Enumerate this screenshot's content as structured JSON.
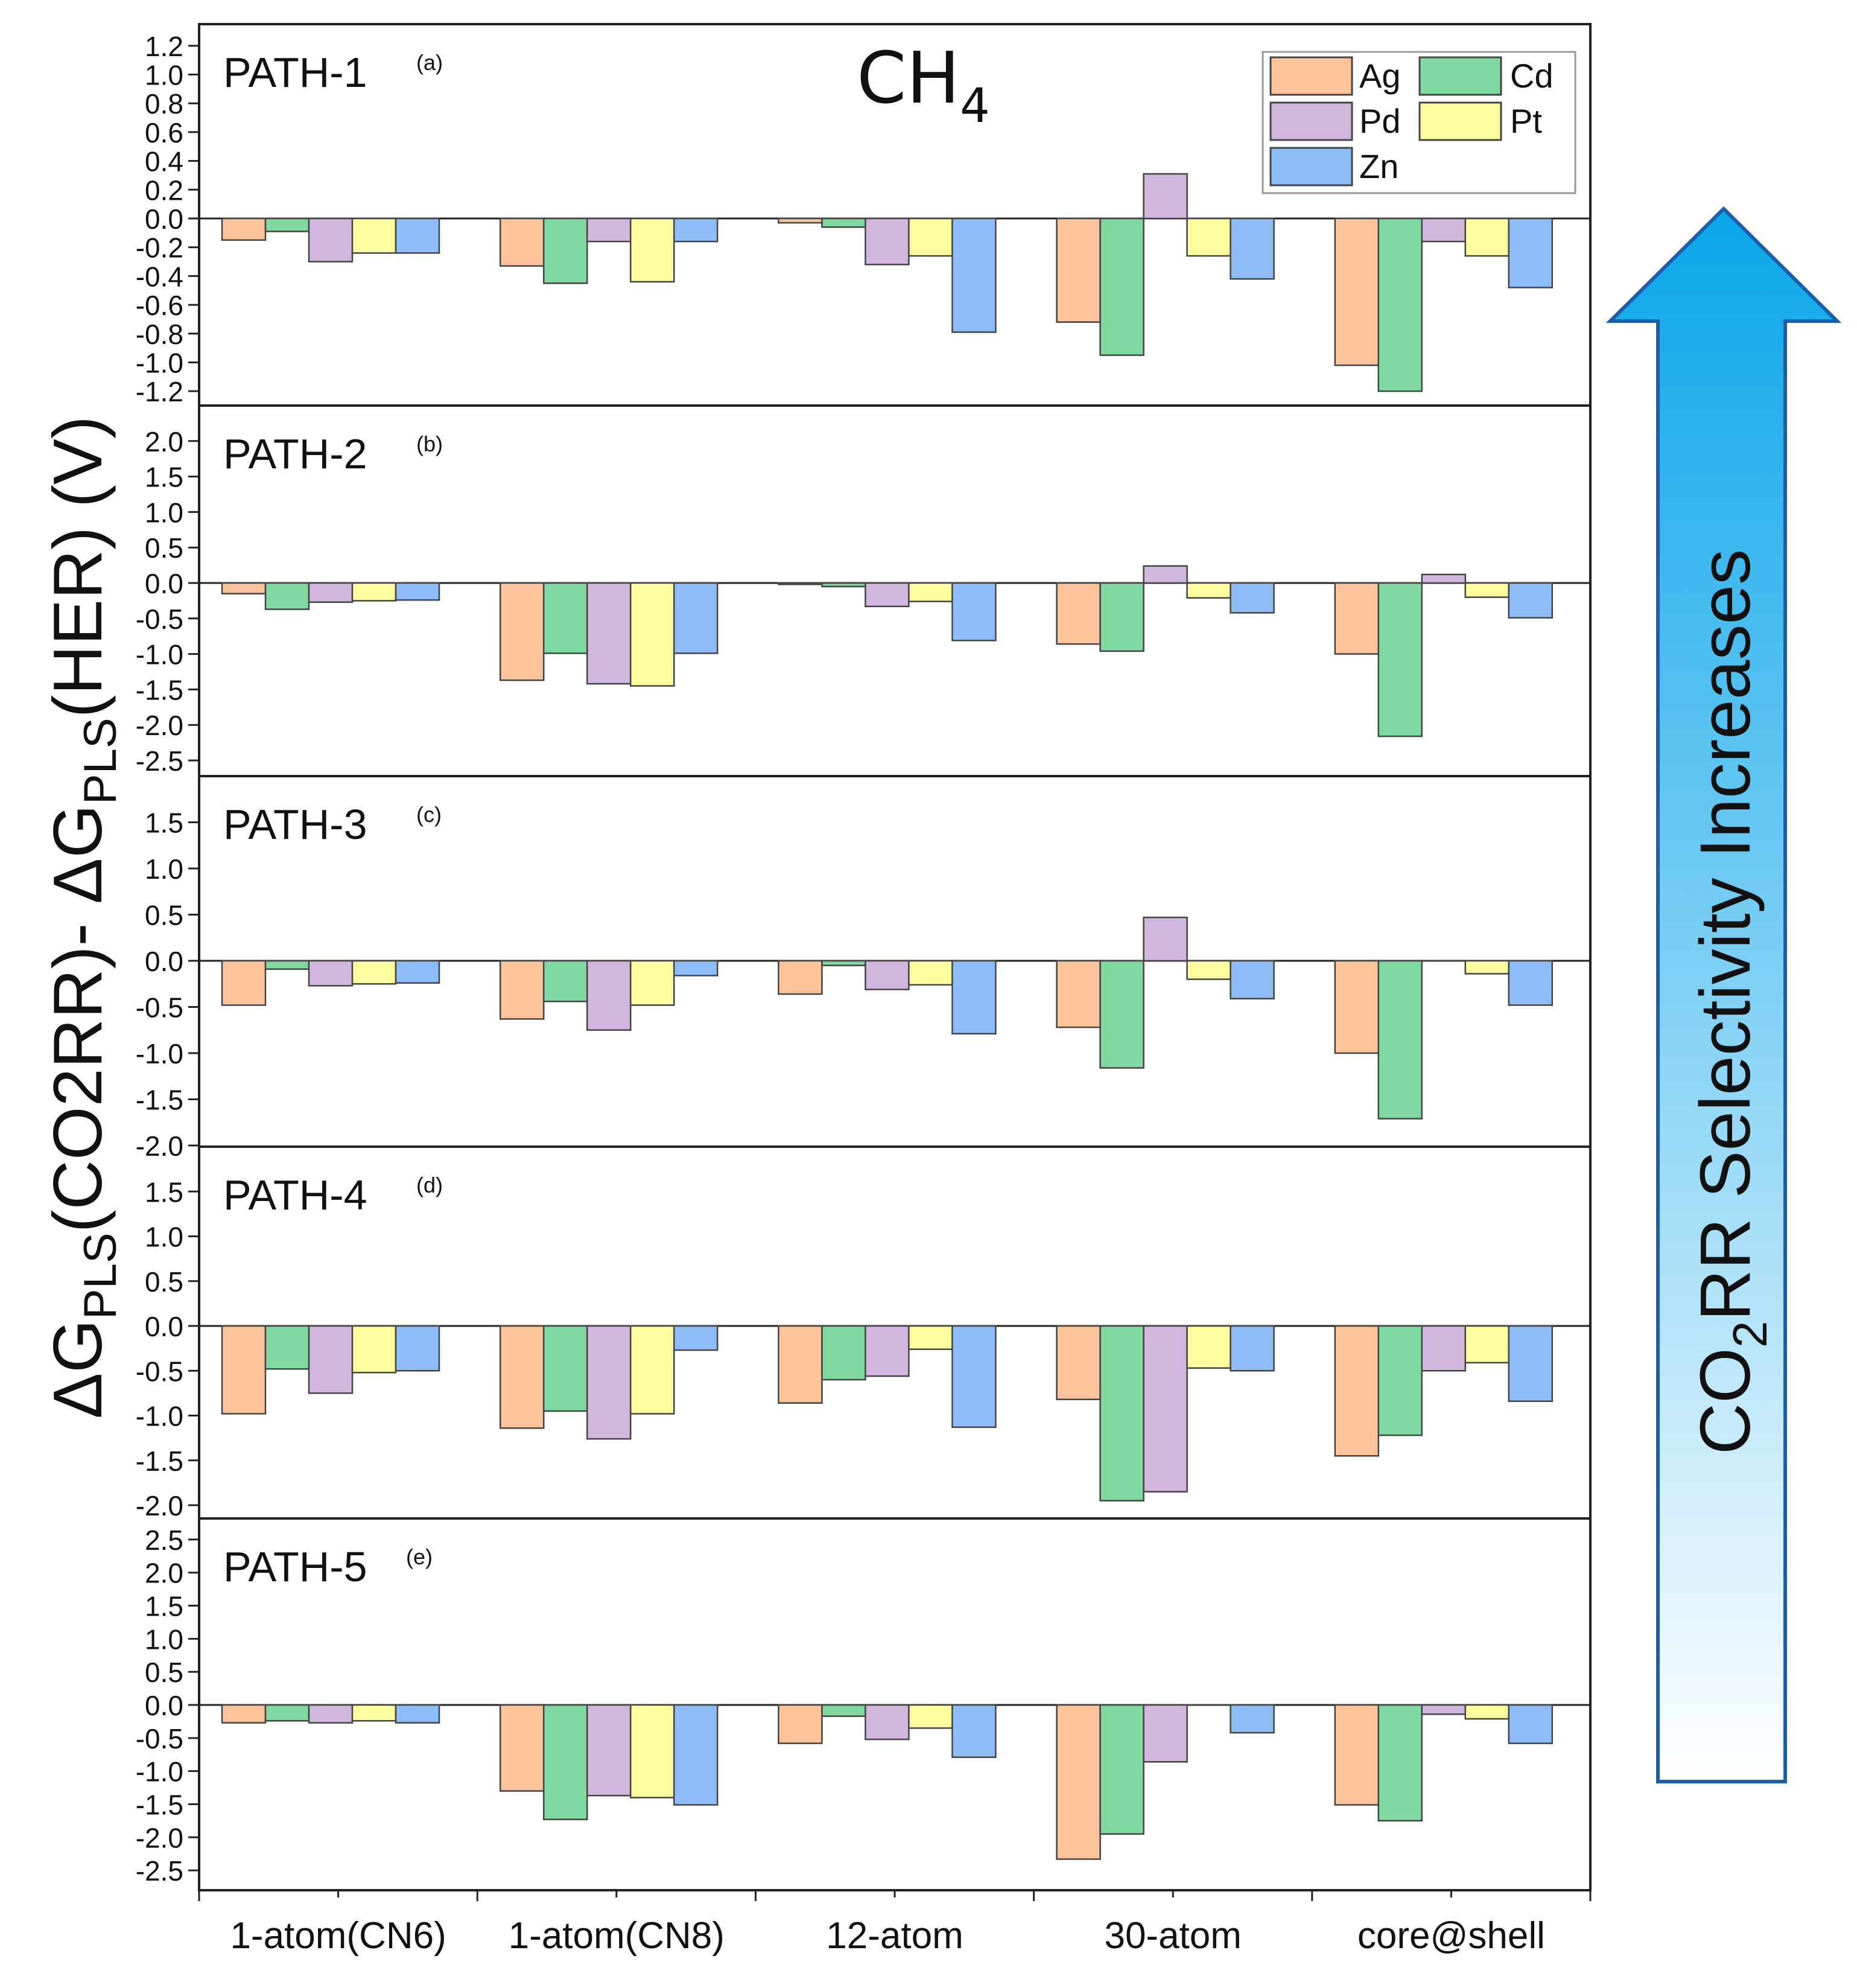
{
  "title": "CH4",
  "title_main": "CH",
  "title_sub": "4",
  "ylabel": {
    "parts": [
      "ΔG",
      "PLS",
      "(CO2RR)- ΔG",
      "PLS",
      "(HER) (V)"
    ],
    "full": "ΔGPLS(CO2RR)- ΔGPLS(HER) (V)"
  },
  "arrow": {
    "label_parts": [
      "CO",
      "2",
      "RR Selectivity Increases"
    ],
    "full": "CO2RR Selectivity Increases",
    "gradient_top": "#0aa6ea",
    "gradient_bottom": "#ffffff",
    "border": "#1a5fa8"
  },
  "legend": {
    "entries": [
      {
        "name": "Ag",
        "color": "#fdc49b"
      },
      {
        "name": "Cd",
        "color": "#80d9a0"
      },
      {
        "name": "Pd",
        "color": "#d1b7dd"
      },
      {
        "name": "Pt",
        "color": "#fdfd9f"
      },
      {
        "name": "Zn",
        "color": "#8ebcf6"
      }
    ]
  },
  "chart_data": {
    "type": "bar",
    "title": "CH4",
    "xlabel": "",
    "ylabel": "ΔGPLS(CO2RR)- ΔGPLS(HER) (V)",
    "categories": [
      "1-atom(CN6)",
      "1-atom(CN8)",
      "12-atom",
      "30-atom",
      "core@shell"
    ],
    "series_names": [
      "Ag",
      "Cd",
      "Pd",
      "Pt",
      "Zn"
    ],
    "panels": [
      {
        "name": "PATH-1",
        "tag": "(a)",
        "ylim": [
          -1.3,
          1.3
        ],
        "ticks": [
          1.2,
          1.0,
          0.8,
          0.6,
          0.4,
          0.2,
          0.0,
          -0.2,
          -0.4,
          -0.6,
          -0.8,
          -1.0,
          -1.2
        ],
        "tick_labels": [
          "1.2",
          "1.0",
          "0.8",
          "0.6",
          "0.4",
          "0.2",
          "0.0",
          "-0.2",
          "-0.4",
          "-0.6",
          "-0.8",
          "-1.0",
          "-1.2"
        ],
        "series": [
          {
            "name": "Ag",
            "values": [
              -0.15,
              -0.33,
              -0.03,
              -0.72,
              -1.02
            ]
          },
          {
            "name": "Cd",
            "values": [
              -0.09,
              -0.45,
              -0.06,
              -0.95,
              -1.2
            ]
          },
          {
            "name": "Pd",
            "values": [
              -0.3,
              -0.16,
              -0.32,
              0.31,
              -0.16
            ]
          },
          {
            "name": "Pt",
            "values": [
              -0.24,
              -0.44,
              -0.26,
              -0.26,
              -0.26
            ]
          },
          {
            "name": "Zn",
            "values": [
              -0.24,
              -0.16,
              -0.79,
              -0.42,
              -0.48
            ]
          }
        ]
      },
      {
        "name": "PATH-2",
        "tag": "(b)",
        "ylim": [
          -2.5,
          2.5
        ],
        "ticks": [
          2.0,
          1.5,
          1.0,
          0.5,
          0.0,
          -0.5,
          -1.0,
          -1.5,
          -2.0,
          -2.5
        ],
        "tick_labels": [
          "2.0",
          "1.5",
          "1.0",
          "0.5",
          "0.0",
          "-0.5",
          "-1.0",
          "-1.5",
          "-2.0",
          "-2.5"
        ],
        "series": [
          {
            "name": "Ag",
            "values": [
              -0.15,
              -1.37,
              -0.02,
              -0.86,
              -1.0
            ]
          },
          {
            "name": "Cd",
            "values": [
              -0.37,
              -0.99,
              -0.05,
              -0.96,
              -2.16
            ]
          },
          {
            "name": "Pd",
            "values": [
              -0.27,
              -1.42,
              -0.33,
              0.24,
              0.12
            ]
          },
          {
            "name": "Pt",
            "values": [
              -0.25,
              -1.45,
              -0.26,
              -0.21,
              -0.2
            ]
          },
          {
            "name": "Zn",
            "values": [
              -0.24,
              -0.99,
              -0.81,
              -0.42,
              -0.49
            ]
          }
        ]
      },
      {
        "name": "PATH-3",
        "tag": "(c)",
        "ylim": [
          -2.0,
          2.0
        ],
        "ticks": [
          1.5,
          1.0,
          0.5,
          0.0,
          -0.5,
          -1.0,
          -1.5,
          -2.0
        ],
        "tick_labels": [
          "1.5",
          "1.0",
          "0.5",
          "0.0",
          "-0.5",
          "-1.0",
          "-1.5",
          "-2.0"
        ],
        "series": [
          {
            "name": "Ag",
            "values": [
              -0.48,
              -0.63,
              -0.36,
              -0.72,
              -1.0
            ]
          },
          {
            "name": "Cd",
            "values": [
              -0.09,
              -0.44,
              -0.05,
              -1.16,
              -1.71
            ]
          },
          {
            "name": "Pd",
            "values": [
              -0.27,
              -0.75,
              -0.31,
              0.47,
              0.0
            ]
          },
          {
            "name": "Pt",
            "values": [
              -0.25,
              -0.48,
              -0.26,
              -0.2,
              -0.14
            ]
          },
          {
            "name": "Zn",
            "values": [
              -0.24,
              -0.16,
              -0.79,
              -0.41,
              -0.48
            ]
          }
        ]
      },
      {
        "name": "PATH-4",
        "tag": "(d)",
        "ylim": [
          -2.0,
          2.0
        ],
        "ticks": [
          1.5,
          1.0,
          0.5,
          0.0,
          -0.5,
          -1.0,
          -1.5,
          -2.0
        ],
        "tick_labels": [
          "1.5",
          "1.0",
          "0.5",
          "0.0",
          "-0.5",
          "-1.0",
          "-1.5",
          "-2.0"
        ],
        "series": [
          {
            "name": "Ag",
            "values": [
              -0.98,
              -1.14,
              -0.86,
              -0.82,
              -1.45
            ]
          },
          {
            "name": "Cd",
            "values": [
              -0.48,
              -0.95,
              -0.6,
              -1.95,
              -1.22
            ]
          },
          {
            "name": "Pd",
            "values": [
              -0.75,
              -1.26,
              -0.56,
              -1.85,
              -0.5
            ]
          },
          {
            "name": "Pt",
            "values": [
              -0.52,
              -0.98,
              -0.26,
              -0.47,
              -0.41
            ]
          },
          {
            "name": "Zn",
            "values": [
              -0.5,
              -0.27,
              -1.13,
              -0.5,
              -0.84
            ]
          }
        ]
      },
      {
        "name": "PATH-5",
        "tag": "(e)",
        "ylim": [
          -2.8,
          2.8
        ],
        "ticks": [
          2.5,
          2.0,
          1.5,
          1.0,
          0.5,
          0.0,
          -0.5,
          -1.0,
          -1.5,
          -2.0,
          -2.5
        ],
        "tick_labels": [
          "2.5",
          "2.0",
          "1.5",
          "1.0",
          "0.5",
          "0.0",
          "-0.5",
          "-1.0",
          "-1.5",
          "-2.0",
          "-2.5"
        ],
        "series": [
          {
            "name": "Ag",
            "values": [
              -0.27,
              -1.3,
              -0.58,
              -2.33,
              -1.51
            ]
          },
          {
            "name": "Cd",
            "values": [
              -0.24,
              -1.73,
              -0.17,
              -1.95,
              -1.75
            ]
          },
          {
            "name": "Pd",
            "values": [
              -0.27,
              -1.37,
              -0.52,
              -0.86,
              -0.14
            ]
          },
          {
            "name": "Pt",
            "values": [
              -0.24,
              -1.4,
              -0.35,
              0.0,
              -0.21
            ]
          },
          {
            "name": "Zn",
            "values": [
              -0.27,
              -1.51,
              -0.79,
              -0.42,
              -0.58
            ]
          }
        ]
      }
    ]
  }
}
